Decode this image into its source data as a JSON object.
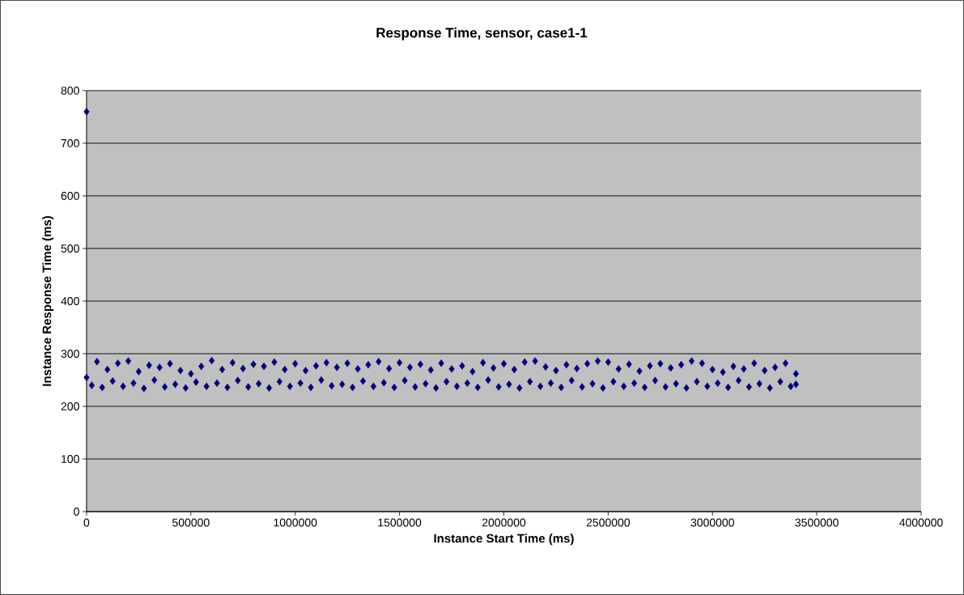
{
  "chart_data": {
    "type": "scatter",
    "title": "Response Time, sensor, case1-1",
    "xlabel": "Instance Start Time (ms)",
    "ylabel": "Instance Response Time (ms)",
    "x": [
      0,
      0,
      25000,
      50000,
      75000,
      100000,
      125000,
      150000,
      175000,
      200000,
      225000,
      250000,
      275000,
      300000,
      325000,
      350000,
      375000,
      400000,
      425000,
      450000,
      475000,
      500000,
      525000,
      550000,
      575000,
      600000,
      625000,
      650000,
      675000,
      700000,
      725000,
      750000,
      775000,
      800000,
      825000,
      850000,
      875000,
      900000,
      925000,
      950000,
      975000,
      1000000,
      1025000,
      1050000,
      1075000,
      1100000,
      1125000,
      1150000,
      1175000,
      1200000,
      1225000,
      1250000,
      1275000,
      1300000,
      1325000,
      1350000,
      1375000,
      1400000,
      1425000,
      1450000,
      1475000,
      1500000,
      1525000,
      1550000,
      1575000,
      1600000,
      1625000,
      1650000,
      1675000,
      1700000,
      1725000,
      1750000,
      1775000,
      1800000,
      1825000,
      1850000,
      1875000,
      1900000,
      1925000,
      1950000,
      1975000,
      2000000,
      2025000,
      2050000,
      2075000,
      2100000,
      2125000,
      2150000,
      2175000,
      2200000,
      2225000,
      2250000,
      2275000,
      2300000,
      2325000,
      2350000,
      2375000,
      2400000,
      2425000,
      2450000,
      2475000,
      2500000,
      2525000,
      2550000,
      2575000,
      2600000,
      2625000,
      2650000,
      2675000,
      2700000,
      2725000,
      2750000,
      2775000,
      2800000,
      2825000,
      2850000,
      2875000,
      2900000,
      2925000,
      2950000,
      2975000,
      3000000,
      3025000,
      3050000,
      3075000,
      3100000,
      3125000,
      3150000,
      3175000,
      3200000,
      3225000,
      3250000,
      3275000,
      3300000,
      3325000,
      3350000,
      3375000,
      3400000,
      3400000
    ],
    "values": [
      760,
      255,
      240,
      285,
      236,
      270,
      248,
      282,
      238,
      286,
      244,
      266,
      234,
      278,
      250,
      274,
      237,
      281,
      242,
      268,
      235,
      262,
      246,
      276,
      238,
      287,
      244,
      270,
      236,
      283,
      249,
      272,
      237,
      280,
      243,
      276,
      235,
      284,
      247,
      270,
      238,
      281,
      244,
      268,
      236,
      277,
      250,
      283,
      239,
      274,
      242,
      282,
      236,
      271,
      248,
      279,
      238,
      285,
      245,
      272,
      236,
      283,
      249,
      274,
      237,
      280,
      243,
      269,
      235,
      282,
      247,
      271,
      238,
      277,
      244,
      266,
      236,
      283,
      250,
      273,
      237,
      281,
      242,
      270,
      235,
      284,
      247,
      286,
      238,
      275,
      244,
      268,
      236,
      279,
      249,
      272,
      237,
      281,
      243,
      286,
      235,
      284,
      247,
      271,
      238,
      280,
      244,
      267,
      236,
      277,
      249,
      281,
      237,
      273,
      243,
      279,
      235,
      286,
      247,
      282,
      238,
      270,
      244,
      265,
      236,
      276,
      249,
      271,
      237,
      282,
      243,
      268,
      235,
      274,
      247,
      282,
      238,
      262,
      242
    ],
    "color": "#000080",
    "marker": "diamond",
    "xlim": [
      0,
      4000000
    ],
    "ylim": [
      0,
      800
    ],
    "xticks": [
      0,
      500000,
      1000000,
      1500000,
      2000000,
      2500000,
      3000000,
      3500000,
      4000000
    ],
    "yticks": [
      0,
      100,
      200,
      300,
      400,
      500,
      600,
      700,
      800
    ],
    "grid": "y"
  }
}
